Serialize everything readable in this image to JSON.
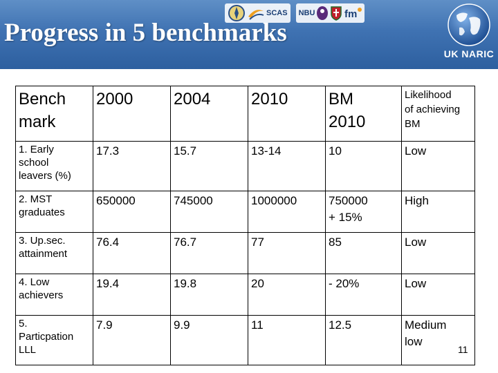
{
  "slide": {
    "title": "Progress in 5 benchmarks",
    "page_number": "11"
  },
  "logos": {
    "scas": "SCAS",
    "nbu": "NBU",
    "naric": "UK NARIC"
  },
  "table": {
    "header": [
      "Bench mark",
      "2000",
      "2004",
      "2010",
      "BM 2010",
      "Likelihood of achieving BM"
    ],
    "header_lines": {
      "c0": [
        "Bench",
        "mark"
      ],
      "c4": [
        "BM",
        "2010"
      ],
      "c5": [
        "Likelihood",
        "of achieving",
        "BM"
      ]
    },
    "rows": [
      {
        "benchmark_lines": [
          "1. Early",
          "school",
          "leavers (%)"
        ],
        "y2000": "17.3",
        "y2004": "15.7",
        "y2010": "13-14",
        "bm2010": "10",
        "likelihood": "Low"
      },
      {
        "benchmark_lines": [
          "2. MST",
          "graduates"
        ],
        "y2000": "650000",
        "y2004": "745000",
        "y2010": "1000000",
        "bm2010_lines": [
          "750000",
          "+ 15%"
        ],
        "likelihood": "High"
      },
      {
        "benchmark_lines": [
          "3. Up.sec.",
          "attainment"
        ],
        "y2000": "76.4",
        "y2004": "76.7",
        "y2010": "77",
        "bm2010": "85",
        "likelihood": "Low"
      },
      {
        "benchmark_lines": [
          "4. Low",
          "achievers"
        ],
        "y2000": "19.4",
        "y2004": "19.8",
        "y2010": "20",
        "bm2010": "- 20%",
        "likelihood": "Low"
      },
      {
        "benchmark_lines": [
          "5.",
          "Particpation",
          "LLL"
        ],
        "y2000": "7.9",
        "y2004": "9.9",
        "y2010": "11",
        "bm2010": "12.5",
        "likelihood_lines": [
          "Medium",
          "low"
        ]
      }
    ]
  },
  "colors": {
    "header_blue": "#3f72b2",
    "title_text": "#ffffff"
  }
}
